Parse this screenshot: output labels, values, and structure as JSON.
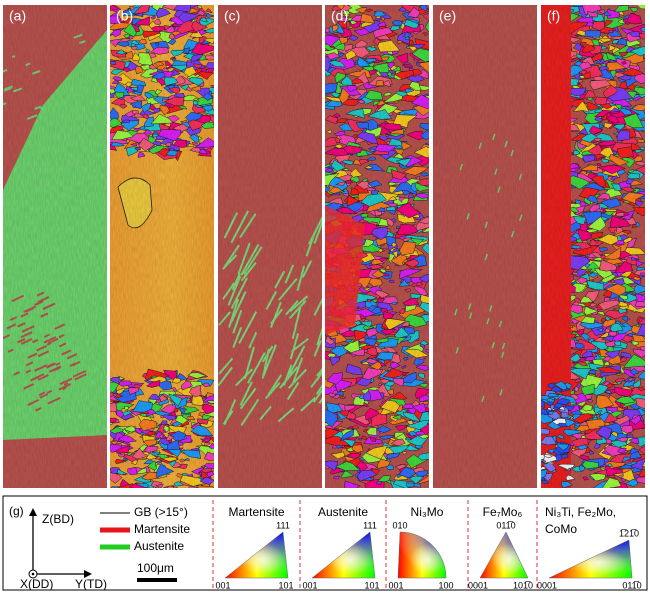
{
  "panels": [
    {
      "label": "(a)"
    },
    {
      "label": "(b)"
    },
    {
      "label": "(c)"
    },
    {
      "label": "(d)"
    },
    {
      "label": "(e)"
    },
    {
      "label": "(f)"
    }
  ],
  "legend": {
    "label": "(g)",
    "axes": {
      "z": "Z(BD)",
      "x": "X(DD)",
      "y": "Y(TD)"
    },
    "keys": [
      {
        "name": "GB (>15°)",
        "color": "#000000"
      },
      {
        "name": "Martensite",
        "color": "#e8151b"
      },
      {
        "name": "Austenite",
        "color": "#22cc22"
      }
    ],
    "scale_bar": "100μm"
  },
  "ipf": [
    {
      "title": "Martensite",
      "corners": [
        "111",
        "001",
        "101"
      ]
    },
    {
      "title": "Austenite",
      "corners": [
        "111",
        "001",
        "101"
      ]
    },
    {
      "title": "Ni₃Mo",
      "corners": [
        "010",
        "001",
        "100"
      ]
    },
    {
      "title": "Fe₇Mo₆",
      "corners": [
        "011̅0",
        "0001",
        "101̅0"
      ]
    },
    {
      "title": "Ni₃Ti, Fe₂Mo, CoMo",
      "corners": [
        "1̅21̅0",
        "0001",
        "011̅0"
      ]
    }
  ]
}
